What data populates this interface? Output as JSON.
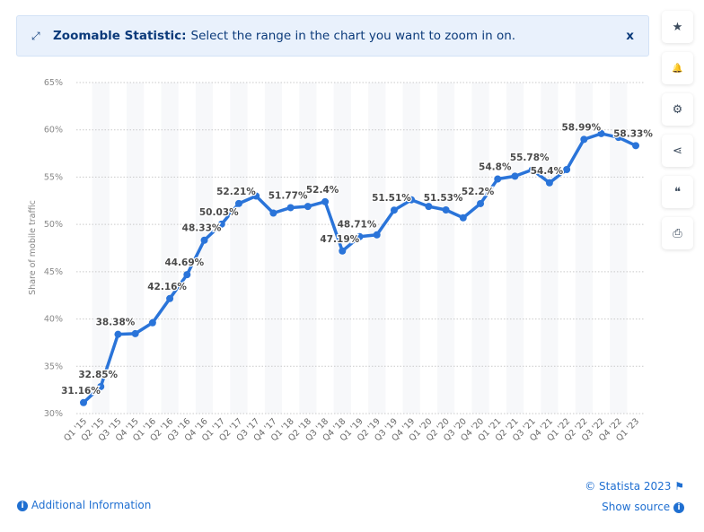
{
  "banner": {
    "title": "Zoomable Statistic:",
    "text": "Select the range in the chart you want to zoom in on.",
    "close": "x",
    "icon": "expand-icon"
  },
  "sidebar": [
    {
      "icon": "star-icon",
      "glyph": "★"
    },
    {
      "icon": "bell-icon",
      "glyph": "🔔"
    },
    {
      "icon": "gear-icon",
      "glyph": "⚙"
    },
    {
      "icon": "share-icon",
      "glyph": "⋖"
    },
    {
      "icon": "quote-icon",
      "glyph": "❝"
    },
    {
      "icon": "print-icon",
      "glyph": "⎙"
    }
  ],
  "footer": {
    "copyright": "© Statista 2023",
    "additional": "Additional Information",
    "show_source": "Show source"
  },
  "colors": {
    "line": "#2a74d9",
    "text": "#444444",
    "link": "#1f6fd1"
  },
  "chart_data": {
    "type": "line",
    "title": "",
    "xlabel": "",
    "ylabel": "Share of mobile traffic",
    "ylim": [
      30,
      65
    ],
    "yticks": [
      "30%",
      "35%",
      "40%",
      "45%",
      "50%",
      "55%",
      "60%",
      "65%"
    ],
    "grid": true,
    "categories": [
      "Q1 '15",
      "Q2 '15",
      "Q3 '15",
      "Q4 '15",
      "Q1 '16",
      "Q2 '16",
      "Q3 '16",
      "Q4 '16",
      "Q1 '17",
      "Q2 '17",
      "Q3 '17",
      "Q4 '17",
      "Q1 '18",
      "Q2 '18",
      "Q3 '18",
      "Q4 '18",
      "Q1 '19",
      "Q2 '19",
      "Q3 '19",
      "Q4 '19",
      "Q1 '20",
      "Q2 '20",
      "Q3 '20",
      "Q4 '20",
      "Q1 '21",
      "Q2 '21",
      "Q3 '21",
      "Q4 '21",
      "Q1 '22",
      "Q2 '22",
      "Q3 '22",
      "Q4 '22",
      "Q1 '23"
    ],
    "values": [
      31.16,
      32.85,
      38.38,
      38.45,
      39.6,
      42.16,
      44.69,
      48.33,
      50.03,
      52.21,
      53.0,
      51.2,
      51.77,
      51.9,
      52.4,
      47.19,
      48.71,
      48.9,
      51.51,
      52.6,
      51.9,
      51.53,
      50.7,
      52.2,
      54.8,
      55.1,
      55.78,
      54.4,
      55.8,
      58.99,
      59.6,
      59.2,
      58.33
    ],
    "labels": [
      "31.16%",
      "32.85%",
      "38.38%",
      null,
      null,
      "42.16%",
      "44.69%",
      "48.33%",
      "50.03%",
      "52.21%",
      null,
      null,
      "51.77%",
      null,
      "52.4%",
      "47.19%",
      "48.71%",
      null,
      "51.51%",
      null,
      null,
      "51.53%",
      null,
      "52.2%",
      "54.8%",
      null,
      "55.78%",
      "54.4%",
      null,
      "58.99%",
      null,
      null,
      "58.33%"
    ]
  }
}
